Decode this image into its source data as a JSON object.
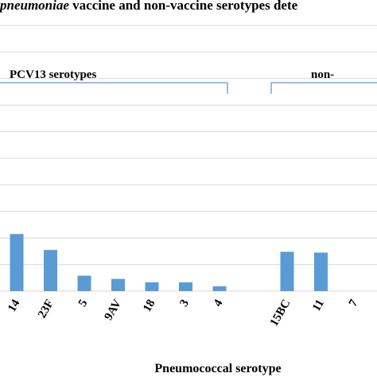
{
  "chart_data": {
    "type": "bar",
    "title_prefix": "pneumoniae",
    "title_rest": " vaccine and non-vaccine serotypes dete",
    "xlabel": "Pneumococcal serotype",
    "ylabel": "",
    "ylim": [
      0,
      100
    ],
    "grid": true,
    "groups": [
      {
        "label": "PCV13 serotypes",
        "start_category": 0,
        "end_category": 6
      },
      {
        "label": "non-",
        "start_category": 8,
        "end_category": 10
      }
    ],
    "categories": [
      "14",
      "23F",
      "5",
      "9AV",
      "18",
      "3",
      "4",
      "",
      "15BC",
      "11",
      "7"
    ],
    "values": [
      21.5,
      15.5,
      5.8,
      4.6,
      3.3,
      3.3,
      1.8,
      0,
      14.8,
      14.5,
      0
    ]
  },
  "colors": {
    "bar": "#5b9bd5",
    "bracket": "#5b9bd5",
    "grid": "#d9d9d9"
  }
}
